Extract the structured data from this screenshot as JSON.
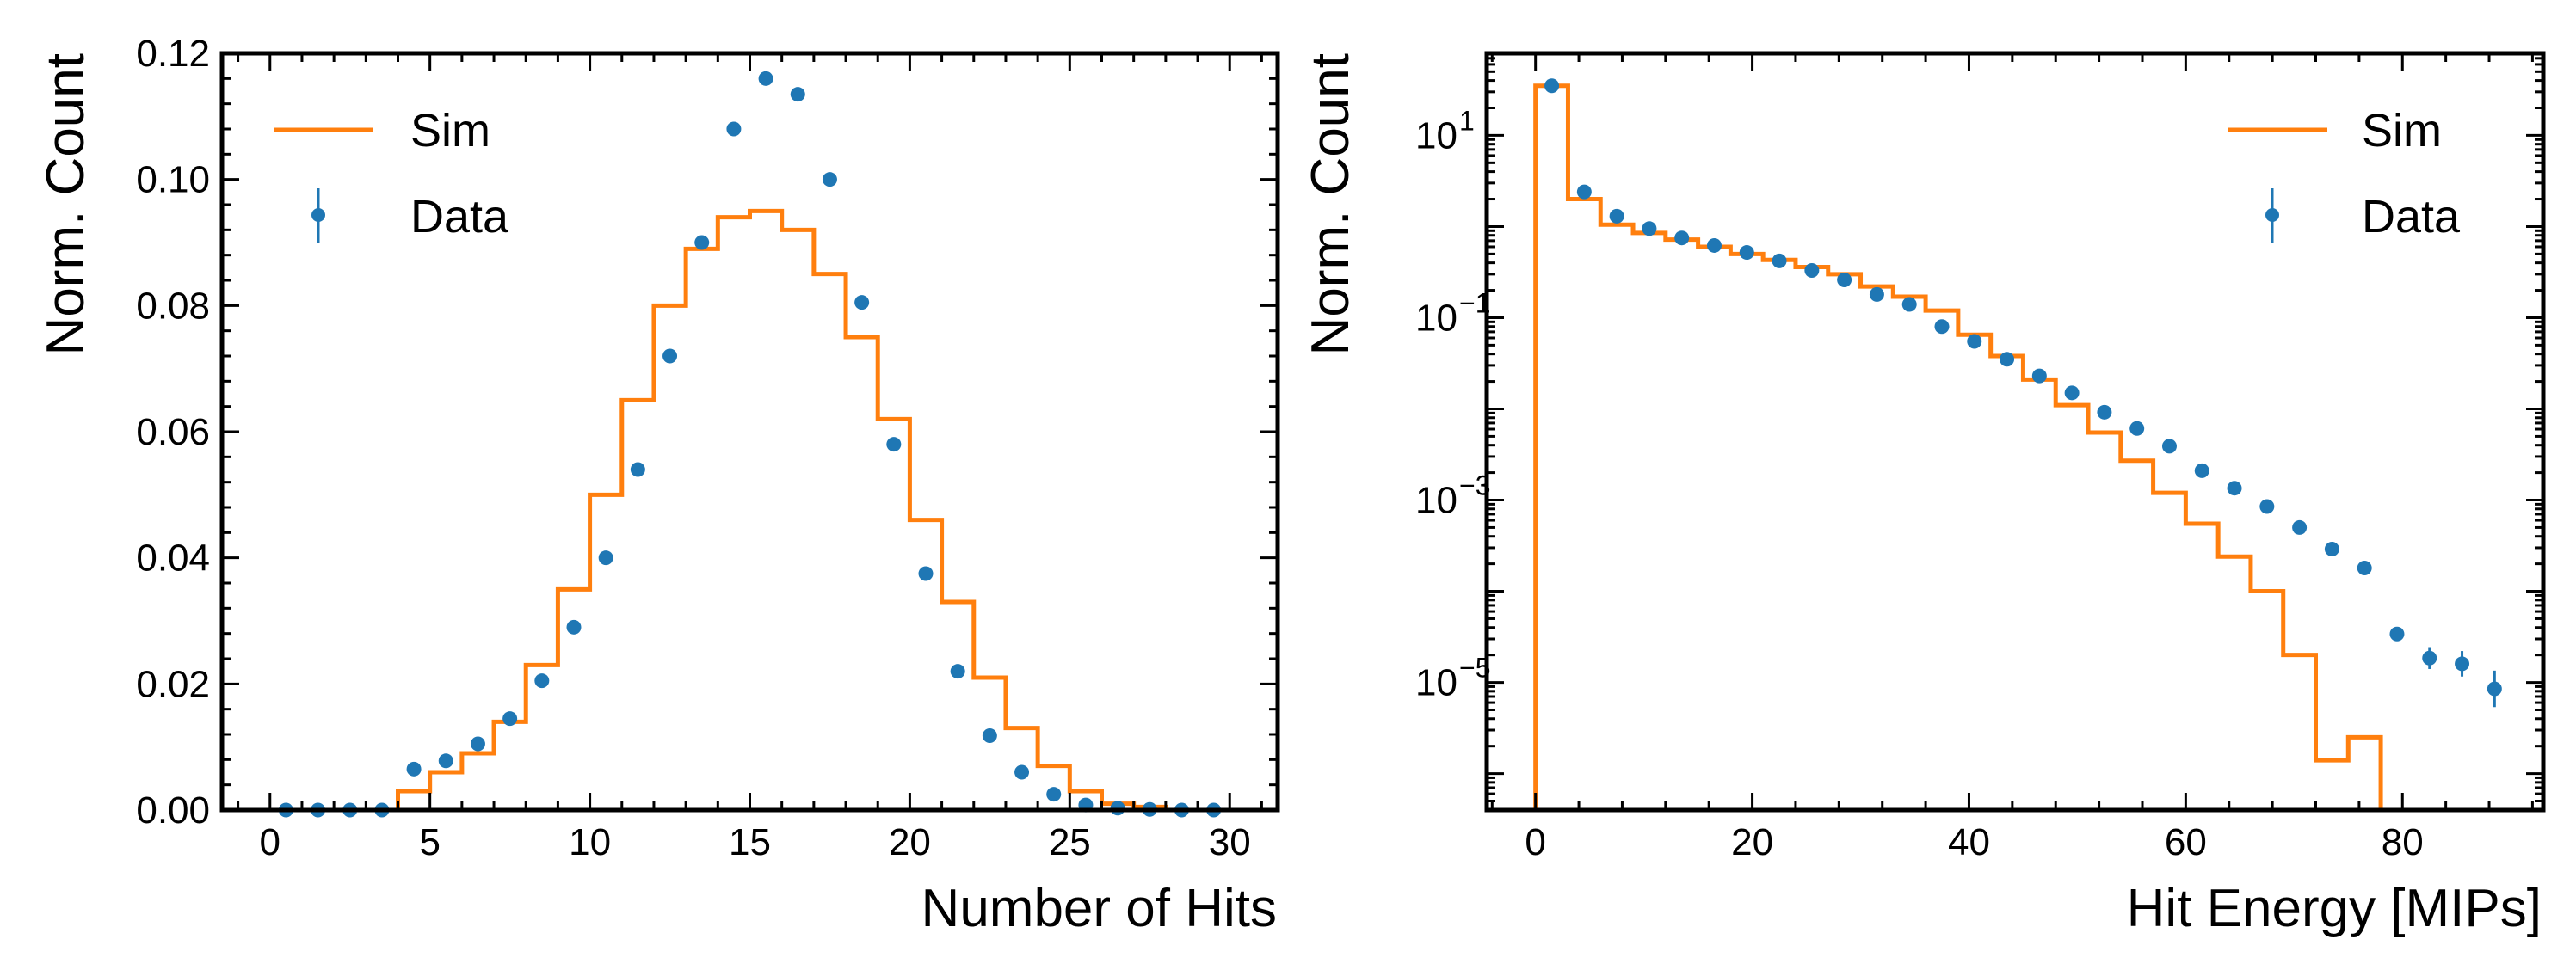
{
  "chart_data": [
    {
      "type": "histogram+errorbar",
      "title": "",
      "xlabel": "Number of Hits",
      "ylabel": "Norm. Count",
      "xlim": [
        -1.5,
        31.5
      ],
      "ylim": [
        0,
        0.12
      ],
      "yscale": "linear",
      "xticks": [
        0,
        5,
        10,
        15,
        20,
        25,
        30
      ],
      "xtick_labels": [
        "0",
        "5",
        "10",
        "15",
        "20",
        "25",
        "30"
      ],
      "yticks": [
        0,
        0.02,
        0.04,
        0.06,
        0.08,
        0.1,
        0.12
      ],
      "ytick_labels": [
        "0.00",
        "0.02",
        "0.04",
        "0.06",
        "0.08",
        "0.10",
        "0.12"
      ],
      "legend_position": "top-left",
      "series": [
        {
          "name": "Sim",
          "kind": "step",
          "color": "#ff7f0e",
          "bin_edges": [
            0,
            1,
            2,
            3,
            4,
            5,
            6,
            7,
            8,
            9,
            10,
            11,
            12,
            13,
            14,
            15,
            16,
            17,
            18,
            19,
            20,
            21,
            22,
            23,
            24,
            25,
            26,
            27,
            28,
            29,
            30
          ],
          "values": [
            0,
            0,
            0,
            0,
            0.003,
            0.006,
            0.009,
            0.014,
            0.023,
            0.035,
            0.05,
            0.065,
            0.08,
            0.089,
            0.094,
            0.095,
            0.092,
            0.085,
            0.075,
            0.062,
            0.046,
            0.033,
            0.021,
            0.013,
            0.007,
            0.003,
            0.001,
            0.0005,
            0,
            0
          ]
        },
        {
          "name": "Data",
          "kind": "errorbar",
          "color": "#1f77b4",
          "x": [
            0.5,
            1.5,
            2.5,
            3.5,
            4.5,
            5.5,
            6.5,
            7.5,
            8.5,
            9.5,
            10.5,
            11.5,
            12.5,
            13.5,
            14.5,
            15.5,
            16.5,
            17.5,
            18.5,
            19.5,
            20.5,
            21.5,
            22.5,
            23.5,
            24.5,
            25.5,
            26.5,
            27.5,
            28.5,
            29.5
          ],
          "y": [
            0,
            0,
            0,
            0,
            0.0065,
            0.0078,
            0.0105,
            0.0145,
            0.0205,
            0.029,
            0.04,
            0.054,
            0.072,
            0.09,
            0.108,
            0.116,
            0.1135,
            0.1,
            0.0805,
            0.058,
            0.0375,
            0.022,
            0.0118,
            0.006,
            0.0025,
            0.0008,
            0.0003,
            0.0001,
            0,
            0
          ]
        }
      ],
      "legend": [
        "Sim",
        "Data"
      ]
    },
    {
      "type": "histogram+errorbar",
      "title": "",
      "xlabel": "Hit Energy [MIPs]",
      "ylabel": "Norm. Count",
      "xlim": [
        -4.5,
        93
      ],
      "ylim_log10": [
        -6.4,
        1.9
      ],
      "yscale": "log",
      "xticks": [
        0,
        20,
        40,
        60,
        80
      ],
      "xtick_labels": [
        "0",
        "20",
        "40",
        "60",
        "80"
      ],
      "yticks_log10": [
        1,
        -1,
        -3,
        -5
      ],
      "ytick_labels": [
        {
          "base": "10",
          "exp": "1"
        },
        {
          "base": "10",
          "exp": "−1"
        },
        {
          "base": "10",
          "exp": "−3"
        },
        {
          "base": "10",
          "exp": "−5"
        }
      ],
      "legend_position": "top-right",
      "series": [
        {
          "name": "Sim",
          "kind": "step",
          "color": "#ff7f0e",
          "bin_edges": [
            0,
            3,
            6,
            9,
            12,
            15,
            18,
            21,
            24,
            27,
            30,
            33,
            36,
            39,
            42,
            45,
            48,
            51,
            54,
            57,
            60,
            63,
            66,
            69,
            72,
            75,
            78
          ],
          "values": [
            35,
            2.0,
            1.05,
            0.85,
            0.72,
            0.6,
            0.5,
            0.43,
            0.36,
            0.3,
            0.22,
            0.17,
            0.12,
            0.065,
            0.038,
            0.021,
            0.011,
            0.0055,
            0.0027,
            0.0012,
            0.00055,
            0.00024,
            0.0001,
            2e-05,
            1.4e-06,
            2.5e-06
          ]
        },
        {
          "name": "Data",
          "kind": "errorbar",
          "color": "#1f77b4",
          "x": [
            1.5,
            4.5,
            7.5,
            10.5,
            13.5,
            16.5,
            19.5,
            22.5,
            25.5,
            28.5,
            31.5,
            34.5,
            37.5,
            40.5,
            43.5,
            46.5,
            49.5,
            52.5,
            55.5,
            58.5,
            61.5,
            64.5,
            67.5,
            70.5,
            73.5,
            76.5,
            79.5,
            82.5,
            85.5,
            88.5
          ],
          "y": [
            35,
            2.4,
            1.3,
            0.95,
            0.75,
            0.62,
            0.52,
            0.42,
            0.33,
            0.26,
            0.18,
            0.14,
            0.08,
            0.055,
            0.035,
            0.023,
            0.015,
            0.0092,
            0.0061,
            0.0039,
            0.0021,
            0.00135,
            0.00085,
            0.0005,
            0.00029,
            0.00018,
            3.4e-05,
            1.85e-05,
            1.6e-05,
            8.5e-06
          ],
          "yerr_log10": [
            0,
            0,
            0,
            0,
            0,
            0,
            0,
            0,
            0,
            0,
            0,
            0,
            0,
            0,
            0,
            0,
            0,
            0,
            0,
            0,
            0,
            0,
            0,
            0,
            0,
            0,
            0.07,
            0.12,
            0.14,
            0.2
          ]
        }
      ],
      "legend": [
        "Sim",
        "Data"
      ]
    }
  ]
}
